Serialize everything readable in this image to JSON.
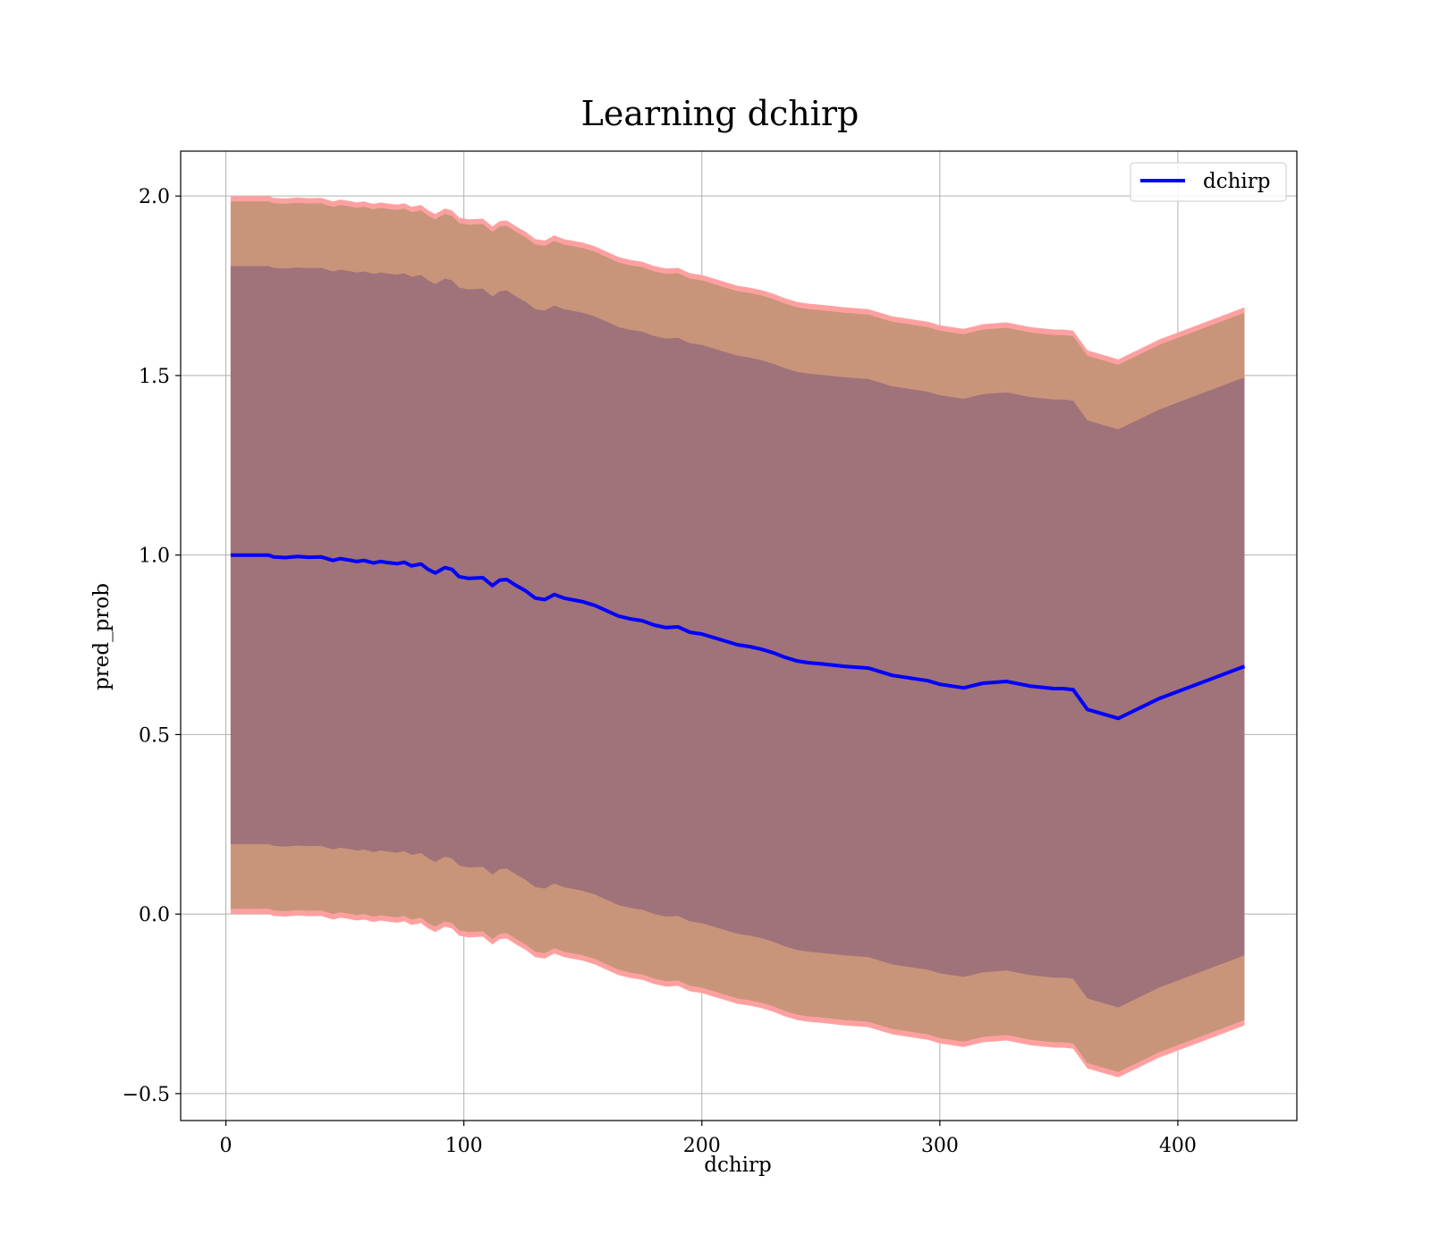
{
  "chart_data": {
    "type": "line",
    "title": "Learning dchirp",
    "xlabel": "dchirp",
    "ylabel": "pred_prob",
    "xlim": [
      -19,
      450
    ],
    "ylim": [
      -0.575,
      2.125
    ],
    "xticks": [
      0,
      100,
      200,
      300,
      400
    ],
    "yticks": [
      -0.5,
      0.0,
      0.5,
      1.0,
      1.5,
      2.0
    ],
    "xtick_labels": [
      "0",
      "100",
      "200",
      "300",
      "400"
    ],
    "ytick_labels": [
      "−0.5",
      "0.0",
      "0.5",
      "1.0",
      "1.5",
      "2.0"
    ],
    "grid": true,
    "legend_position": "top-right",
    "series": [
      {
        "name": "dchirp",
        "color": "#0000ff",
        "x": [
          2,
          10,
          18,
          20,
          25,
          30,
          35,
          40,
          45,
          48,
          52,
          55,
          58,
          62,
          65,
          68,
          72,
          75,
          78,
          82,
          85,
          88,
          92,
          95,
          98,
          102,
          108,
          112,
          115,
          118,
          122,
          126,
          130,
          134,
          138,
          142,
          146,
          150,
          155,
          160,
          165,
          170,
          175,
          180,
          185,
          190,
          195,
          200,
          205,
          210,
          215,
          220,
          225,
          230,
          235,
          240,
          245,
          250,
          260,
          270,
          280,
          290,
          295,
          300,
          305,
          310,
          318,
          328,
          338,
          348,
          352,
          356,
          362,
          375,
          392,
          410,
          428
        ],
        "values": [
          1.0,
          1.0,
          1.0,
          0.995,
          0.993,
          0.996,
          0.994,
          0.995,
          0.985,
          0.99,
          0.986,
          0.982,
          0.985,
          0.978,
          0.982,
          0.979,
          0.976,
          0.98,
          0.97,
          0.975,
          0.96,
          0.95,
          0.965,
          0.96,
          0.94,
          0.935,
          0.937,
          0.915,
          0.93,
          0.932,
          0.915,
          0.9,
          0.88,
          0.876,
          0.89,
          0.88,
          0.875,
          0.87,
          0.86,
          0.845,
          0.83,
          0.822,
          0.817,
          0.805,
          0.798,
          0.8,
          0.785,
          0.78,
          0.77,
          0.76,
          0.75,
          0.745,
          0.738,
          0.728,
          0.715,
          0.705,
          0.7,
          0.697,
          0.69,
          0.685,
          0.665,
          0.655,
          0.65,
          0.64,
          0.635,
          0.63,
          0.643,
          0.648,
          0.635,
          0.628,
          0.628,
          0.625,
          0.57,
          0.545,
          0.6,
          0.645,
          0.69
        ]
      }
    ],
    "bands": [
      {
        "name": "outer",
        "fill": "#ffa0a0",
        "offset": 1.0
      },
      {
        "name": "middle",
        "fill": "#c8957a",
        "offset": 0.985
      },
      {
        "name": "inner",
        "fill": "#a0727a",
        "offset": 0.805
      }
    ]
  }
}
